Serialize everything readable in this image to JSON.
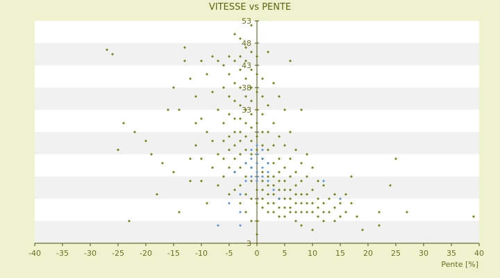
{
  "chart_data": {
    "type": "scatter",
    "title": "VITESSE vs PENTE",
    "xlabel": "Pente [%]",
    "ylabel": "",
    "xlim": [
      -40,
      40
    ],
    "ylim": [
      3,
      53
    ],
    "x_ticks": [
      -40,
      -35,
      -30,
      -25,
      -20,
      -15,
      -10,
      -5,
      0,
      5,
      10,
      15,
      20,
      25,
      30,
      35,
      40
    ],
    "y_ticks": [
      3,
      8,
      13,
      18,
      23,
      28,
      33,
      38,
      43,
      48,
      53
    ],
    "y_tick_labels": [
      "3",
      "",
      "",
      "",
      "",
      "",
      "33",
      "38",
      "43",
      "48",
      "53"
    ],
    "grid": "horizontal alternating bands",
    "legend": "none",
    "series": [
      {
        "color": "#6b7a00",
        "marker": "diamond",
        "points": [
          [
            -27,
            46.5
          ],
          [
            -26,
            45.5
          ],
          [
            -25,
            24
          ],
          [
            -24,
            30
          ],
          [
            -23,
            8
          ],
          [
            -22,
            28
          ],
          [
            -20,
            26
          ],
          [
            -19,
            23
          ],
          [
            -18,
            14
          ],
          [
            -17,
            21
          ],
          [
            -16,
            33
          ],
          [
            -15,
            38
          ],
          [
            -15,
            19
          ],
          [
            -14,
            33
          ],
          [
            -14,
            10
          ],
          [
            -13,
            47
          ],
          [
            -13,
            44
          ],
          [
            -12,
            40
          ],
          [
            -12,
            22
          ],
          [
            -12,
            17
          ],
          [
            -11,
            36
          ],
          [
            -11,
            30
          ],
          [
            -11,
            25
          ],
          [
            -10,
            44
          ],
          [
            -10,
            31
          ],
          [
            -10,
            22
          ],
          [
            -10,
            17
          ],
          [
            -9,
            41
          ],
          [
            -9,
            28
          ],
          [
            -9,
            12
          ],
          [
            -8,
            45
          ],
          [
            -8,
            37
          ],
          [
            -8,
            26
          ],
          [
            -8,
            20
          ],
          [
            -7,
            44
          ],
          [
            -7,
            33
          ],
          [
            -7,
            23
          ],
          [
            -7,
            16
          ],
          [
            -6,
            43
          ],
          [
            -6,
            38
          ],
          [
            -6,
            30
          ],
          [
            -6,
            26
          ],
          [
            -6,
            22
          ],
          [
            -6,
            18
          ],
          [
            -5,
            45
          ],
          [
            -5,
            41
          ],
          [
            -5,
            36
          ],
          [
            -5,
            32
          ],
          [
            -5,
            27
          ],
          [
            -5,
            24
          ],
          [
            -5,
            20
          ],
          [
            -5,
            14
          ],
          [
            -4,
            50
          ],
          [
            -4,
            44
          ],
          [
            -4,
            39
          ],
          [
            -4,
            35
          ],
          [
            -4,
            31
          ],
          [
            -4,
            28
          ],
          [
            -4,
            25
          ],
          [
            -4,
            22
          ],
          [
            -4,
            19
          ],
          [
            -4,
            15
          ],
          [
            -3,
            49
          ],
          [
            -3,
            45
          ],
          [
            -3,
            42
          ],
          [
            -3,
            38
          ],
          [
            -3,
            34
          ],
          [
            -3,
            31
          ],
          [
            -3,
            28
          ],
          [
            -3,
            26
          ],
          [
            -3,
            23
          ],
          [
            -3,
            20
          ],
          [
            -3,
            16
          ],
          [
            -3,
            12
          ],
          [
            -2,
            47
          ],
          [
            -2,
            44
          ],
          [
            -2,
            40
          ],
          [
            -2,
            36
          ],
          [
            -2,
            33
          ],
          [
            -2,
            30
          ],
          [
            -2,
            27
          ],
          [
            -2,
            24
          ],
          [
            -2,
            21
          ],
          [
            -2,
            18
          ],
          [
            -2,
            14
          ],
          [
            -2,
            10
          ],
          [
            -1,
            52
          ],
          [
            -1,
            46
          ],
          [
            -1,
            42
          ],
          [
            -1,
            38
          ],
          [
            -1,
            35
          ],
          [
            -1,
            32
          ],
          [
            -1,
            29
          ],
          [
            -1,
            26
          ],
          [
            -1,
            23
          ],
          [
            -1,
            20
          ],
          [
            -1,
            17
          ],
          [
            -1,
            13
          ],
          [
            -1,
            8
          ],
          [
            0,
            45
          ],
          [
            0,
            41
          ],
          [
            0,
            37
          ],
          [
            0,
            33
          ],
          [
            0,
            30
          ],
          [
            0,
            27
          ],
          [
            0,
            24
          ],
          [
            0,
            21
          ],
          [
            0,
            18
          ],
          [
            0,
            15
          ],
          [
            0,
            12
          ],
          [
            0,
            8
          ],
          [
            0,
            5
          ],
          [
            1,
            40
          ],
          [
            1,
            36
          ],
          [
            1,
            32
          ],
          [
            1,
            28
          ],
          [
            1,
            25
          ],
          [
            1,
            22
          ],
          [
            1,
            19
          ],
          [
            1,
            17
          ],
          [
            1,
            15
          ],
          [
            1,
            13
          ],
          [
            1,
            11
          ],
          [
            2,
            46
          ],
          [
            2,
            34
          ],
          [
            2,
            28
          ],
          [
            2,
            24
          ],
          [
            2,
            21
          ],
          [
            2,
            18
          ],
          [
            2,
            16
          ],
          [
            2,
            14
          ],
          [
            2,
            12
          ],
          [
            2,
            10
          ],
          [
            3,
            39
          ],
          [
            3,
            30
          ],
          [
            3,
            25
          ],
          [
            3,
            21
          ],
          [
            3,
            18
          ],
          [
            3,
            16
          ],
          [
            3,
            14
          ],
          [
            3,
            12
          ],
          [
            3,
            10
          ],
          [
            4,
            36
          ],
          [
            4,
            27
          ],
          [
            4,
            22
          ],
          [
            4,
            19
          ],
          [
            4,
            17
          ],
          [
            4,
            15
          ],
          [
            4,
            13
          ],
          [
            4,
            11
          ],
          [
            4,
            9
          ],
          [
            5,
            33
          ],
          [
            5,
            25
          ],
          [
            5,
            20
          ],
          [
            5,
            17
          ],
          [
            5,
            15
          ],
          [
            5,
            13
          ],
          [
            5,
            11
          ],
          [
            5,
            9
          ],
          [
            6,
            44
          ],
          [
            6,
            28
          ],
          [
            6,
            22
          ],
          [
            6,
            18
          ],
          [
            6,
            15
          ],
          [
            6,
            13
          ],
          [
            6,
            11
          ],
          [
            6,
            10
          ],
          [
            7,
            24
          ],
          [
            7,
            19
          ],
          [
            7,
            16
          ],
          [
            7,
            14
          ],
          [
            7,
            12
          ],
          [
            7,
            10
          ],
          [
            7,
            8
          ],
          [
            8,
            33
          ],
          [
            8,
            21
          ],
          [
            8,
            17
          ],
          [
            8,
            14
          ],
          [
            8,
            12
          ],
          [
            8,
            10
          ],
          [
            8,
            7
          ],
          [
            9,
            23
          ],
          [
            9,
            18
          ],
          [
            9,
            14
          ],
          [
            9,
            12
          ],
          [
            9,
            10
          ],
          [
            10,
            20
          ],
          [
            10,
            15
          ],
          [
            10,
            12
          ],
          [
            10,
            10
          ],
          [
            10,
            6
          ],
          [
            11,
            17
          ],
          [
            11,
            13
          ],
          [
            11,
            11
          ],
          [
            11,
            9
          ],
          [
            12,
            16
          ],
          [
            12,
            12
          ],
          [
            12,
            10
          ],
          [
            12,
            8
          ],
          [
            13,
            13
          ],
          [
            13,
            10
          ],
          [
            14,
            14
          ],
          [
            14,
            11
          ],
          [
            14,
            8
          ],
          [
            15,
            12
          ],
          [
            15,
            9
          ],
          [
            16,
            14
          ],
          [
            16,
            10
          ],
          [
            17,
            18
          ],
          [
            17,
            12
          ],
          [
            18,
            9
          ],
          [
            19,
            6
          ],
          [
            22,
            10
          ],
          [
            22,
            7
          ],
          [
            24,
            16
          ],
          [
            25,
            22
          ],
          [
            27,
            10
          ],
          [
            39,
            9
          ]
        ]
      },
      {
        "color": "#4a90d9",
        "marker": "diamond",
        "points": [
          [
            -5,
            12
          ],
          [
            -4,
            19
          ],
          [
            -3,
            14
          ],
          [
            -3,
            10
          ],
          [
            -3,
            7
          ],
          [
            -2,
            21
          ],
          [
            -2,
            17
          ],
          [
            -1,
            24
          ],
          [
            -1,
            22
          ],
          [
            -1,
            20
          ],
          [
            -1,
            18
          ],
          [
            0,
            25
          ],
          [
            0,
            23
          ],
          [
            0,
            21
          ],
          [
            0,
            19
          ],
          [
            0,
            18
          ],
          [
            0,
            17
          ],
          [
            1,
            24
          ],
          [
            1,
            22
          ],
          [
            1,
            20
          ],
          [
            1,
            18
          ],
          [
            2,
            21
          ],
          [
            2,
            19
          ],
          [
            2,
            17
          ],
          [
            3,
            15
          ],
          [
            4,
            13
          ],
          [
            12,
            17
          ],
          [
            15,
            13
          ],
          [
            -7,
            7
          ]
        ]
      }
    ]
  }
}
